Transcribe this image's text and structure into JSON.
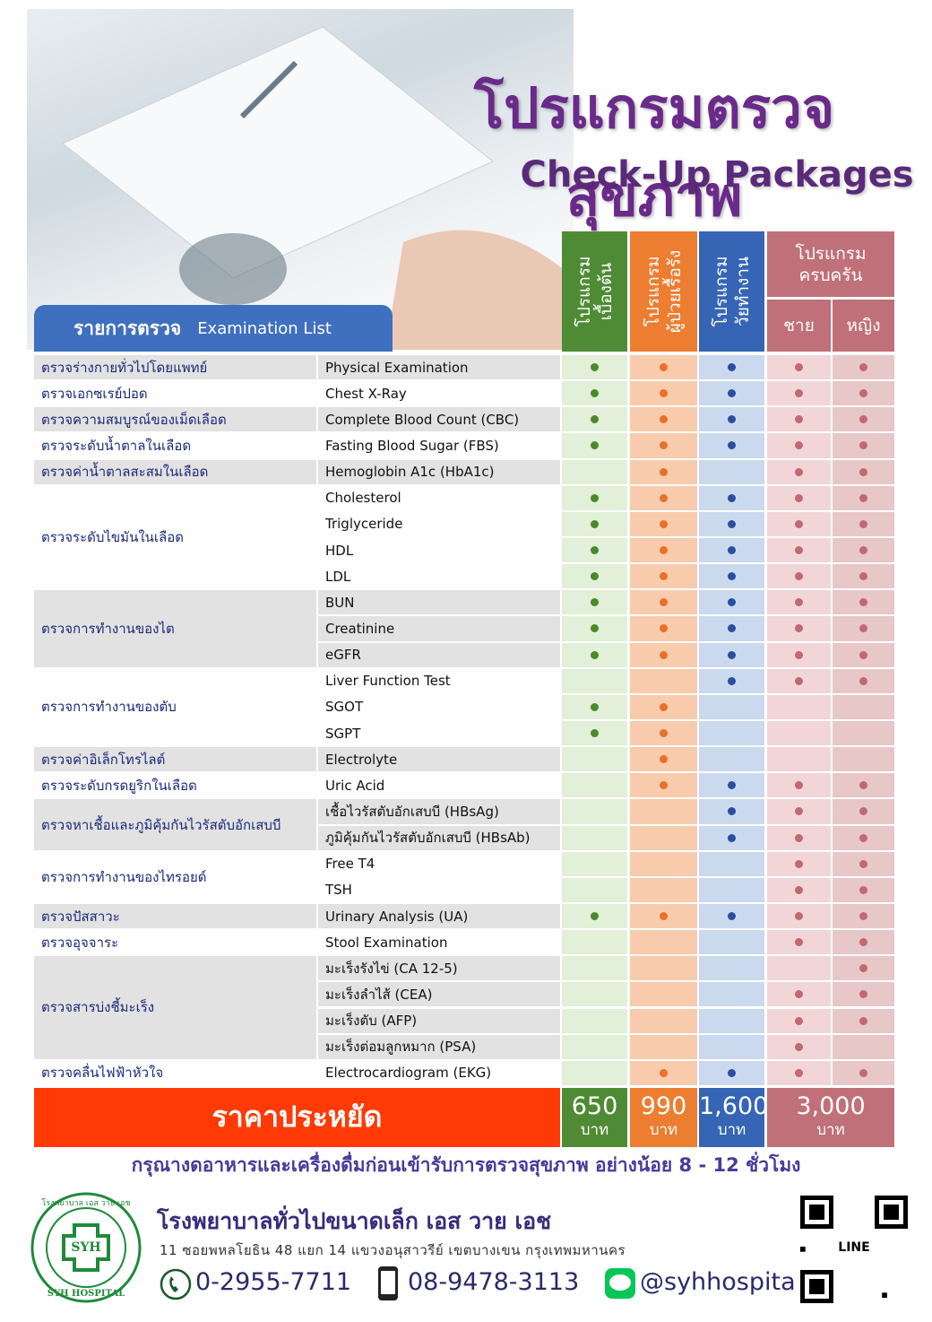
{
  "header": {
    "title": "โปรแกรมตรวจสุขภาพ",
    "subtitle": "Check-Up Packages"
  },
  "table": {
    "list_title": "รายการตรวจ",
    "list_subtitle": "Examination List",
    "packages": [
      {
        "lines": [
          "โปรแกรม",
          "เบื้องต้น"
        ],
        "price": "650",
        "unit": "บาท"
      },
      {
        "lines": [
          "โปรแกรม",
          "ผู้ป่วยเรื้อรัง"
        ],
        "price": "990",
        "unit": "บาท"
      },
      {
        "lines": [
          "โปรแกรม",
          "วัยทำงาน"
        ],
        "price": "1,600",
        "unit": "บาท"
      },
      {
        "lines": [
          "โปรแกรม",
          "ครบครัน"
        ],
        "sub": [
          "ชาย",
          "หญิง"
        ],
        "price": "3,000",
        "unit": "บาท"
      }
    ],
    "groups": [
      {
        "label": "ตรวจร่างกายทั่วไปโดยแพทย์",
        "items": [
          {
            "name": "Physical Examination",
            "checks": [
              true,
              true,
              true,
              true,
              true
            ]
          }
        ]
      },
      {
        "label": "ตรวจเอกซเรย์ปอด",
        "items": [
          {
            "name": "Chest X-Ray",
            "checks": [
              true,
              true,
              true,
              true,
              true
            ]
          }
        ]
      },
      {
        "label": "ตรวจความสมบูรณ์ของเม็ดเลือด",
        "items": [
          {
            "name": "Complete Blood Count (CBC)",
            "checks": [
              true,
              true,
              true,
              true,
              true
            ]
          }
        ]
      },
      {
        "label": "ตรวจระดับน้ำตาลในเลือด",
        "items": [
          {
            "name": "Fasting Blood Sugar (FBS)",
            "checks": [
              true,
              true,
              true,
              true,
              true
            ]
          }
        ]
      },
      {
        "label": "ตรวจค่าน้ำตาลสะสมในเลือด",
        "items": [
          {
            "name": "Hemoglobin A1c (HbA1c)",
            "checks": [
              false,
              true,
              false,
              true,
              true
            ]
          }
        ]
      },
      {
        "label": "ตรวจระดับไขมันในเลือด",
        "items": [
          {
            "name": "Cholesterol",
            "checks": [
              true,
              true,
              true,
              true,
              true
            ]
          },
          {
            "name": "Triglyceride",
            "checks": [
              true,
              true,
              true,
              true,
              true
            ]
          },
          {
            "name": "HDL",
            "checks": [
              true,
              true,
              true,
              true,
              true
            ]
          },
          {
            "name": "LDL",
            "checks": [
              true,
              true,
              true,
              true,
              true
            ]
          }
        ]
      },
      {
        "label": "ตรวจการทำงานของไต",
        "items": [
          {
            "name": "BUN",
            "checks": [
              true,
              true,
              true,
              true,
              true
            ]
          },
          {
            "name": "Creatinine",
            "checks": [
              true,
              true,
              true,
              true,
              true
            ]
          },
          {
            "name": "eGFR",
            "checks": [
              true,
              true,
              true,
              true,
              true
            ]
          }
        ]
      },
      {
        "label": "ตรวจการทำงานของตับ",
        "items": [
          {
            "name": "Liver Function Test",
            "checks": [
              false,
              false,
              true,
              true,
              true
            ]
          },
          {
            "name": "SGOT",
            "checks": [
              true,
              true,
              false,
              false,
              false
            ]
          },
          {
            "name": "SGPT",
            "checks": [
              true,
              true,
              false,
              false,
              false
            ]
          }
        ]
      },
      {
        "label": "ตรวจค่าอิเล็กโทรไลต์",
        "items": [
          {
            "name": "Electrolyte",
            "checks": [
              false,
              true,
              false,
              false,
              false
            ]
          }
        ]
      },
      {
        "label": "ตรวจระดับกรดยูริกในเลือด",
        "items": [
          {
            "name": "Uric Acid",
            "checks": [
              false,
              true,
              true,
              true,
              true
            ]
          }
        ]
      },
      {
        "label": "ตรวจหาเชื้อและภูมิคุ้มกันไวรัสตับอักเสบบี",
        "items": [
          {
            "name": "เชื้อไวรัสตับอักเสบบี (HBsAg)",
            "checks": [
              false,
              false,
              true,
              true,
              true
            ]
          },
          {
            "name": "ภูมิคุ้มกันไวรัสตับอักเสบบี (HBsAb)",
            "checks": [
              false,
              false,
              true,
              true,
              true
            ]
          }
        ]
      },
      {
        "label": "ตรวจการทำงานของไทรอยด์",
        "items": [
          {
            "name": "Free T4",
            "checks": [
              false,
              false,
              false,
              true,
              true
            ]
          },
          {
            "name": "TSH",
            "checks": [
              false,
              false,
              false,
              true,
              true
            ]
          }
        ]
      },
      {
        "label": "ตรวจปัสสาวะ",
        "items": [
          {
            "name": "Urinary Analysis (UA)",
            "checks": [
              true,
              true,
              true,
              true,
              true
            ]
          }
        ]
      },
      {
        "label": "ตรวจอุจจาระ",
        "items": [
          {
            "name": "Stool Examination",
            "checks": [
              false,
              false,
              false,
              true,
              true
            ]
          }
        ]
      },
      {
        "label": "ตรวจสารบ่งชี้มะเร็ง",
        "items": [
          {
            "name": "มะเร็งรังไข่ (CA 12-5)",
            "checks": [
              false,
              false,
              false,
              false,
              true
            ]
          },
          {
            "name": "มะเร็งลำไส้ (CEA)",
            "checks": [
              false,
              false,
              false,
              true,
              true
            ]
          },
          {
            "name": "มะเร็งตับ (AFP)",
            "checks": [
              false,
              false,
              false,
              true,
              true
            ]
          },
          {
            "name": "มะเร็งต่อมลูกหมาก (PSA)",
            "checks": [
              false,
              false,
              false,
              true,
              false
            ]
          }
        ]
      },
      {
        "label": "ตรวจคลื่นไฟฟ้าหัวใจ",
        "items": [
          {
            "name": "Electrocardiogram (EKG)",
            "checks": [
              false,
              true,
              true,
              true,
              true
            ]
          }
        ]
      }
    ],
    "price_label": "ราคาประหยัด"
  },
  "note": "กรุณางดอาหารและเครื่องดื่มก่อนเข้ารับการตรวจสุขภาพ อย่างน้อย 8 - 12 ชั่วโมง",
  "footer": {
    "logo_top": "โรงพยาบาล เอส วาย เอช",
    "logo_mark": "SYH",
    "logo_bottom": "SYH HOSPITAL",
    "hospital": "โรงพยาบาลทั่วไปขนาดเล็ก เอส วาย เอช",
    "address": "11  ซอยพหลโยธิน 48 แยก 14  แขวงอนุสาวรีย์  เขตบางเขน  กรุงเทพมหานคร",
    "phone": "0-2955-7711",
    "mobile": "08-9478-3113",
    "line": "@syhhospital",
    "qr_label": "LINE"
  }
}
